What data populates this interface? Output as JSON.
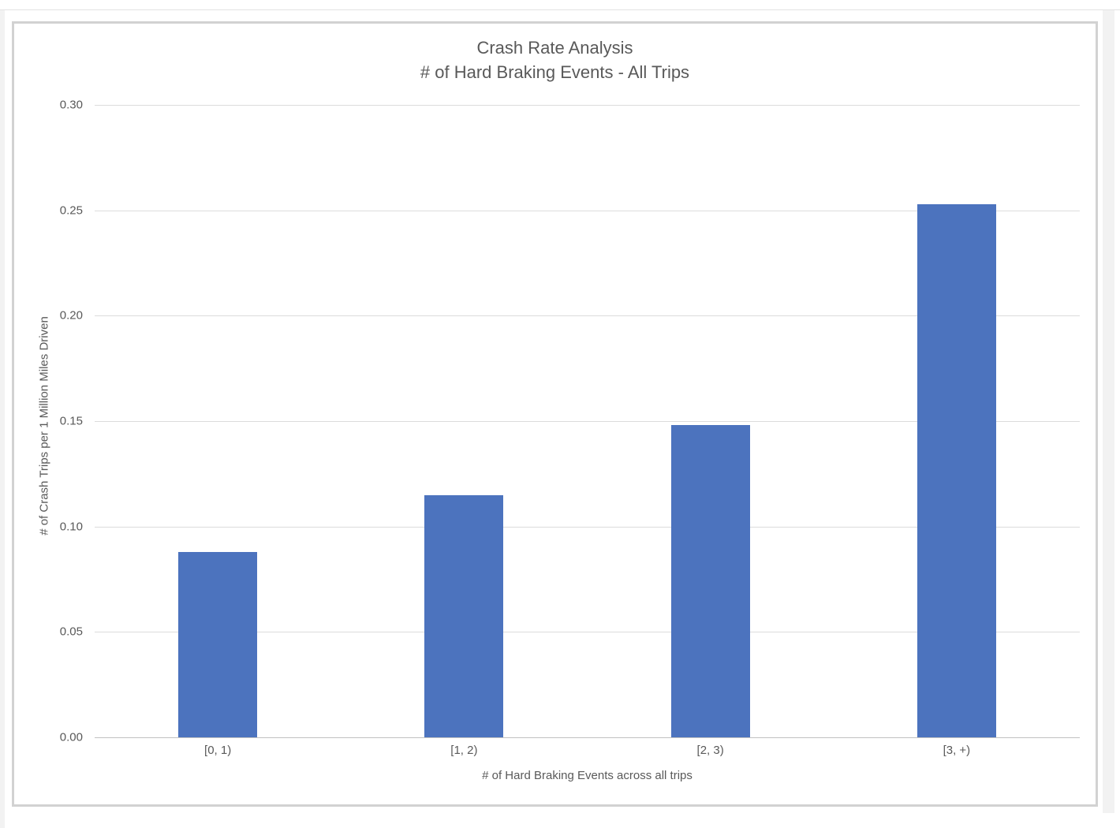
{
  "chart_data": {
    "type": "bar",
    "title": "Crash Rate Analysis",
    "subtitle": "# of Hard Braking Events - All Trips",
    "categories": [
      "[0, 1)",
      "[1, 2)",
      "[2, 3)",
      "[3, +)"
    ],
    "values": [
      0.088,
      0.115,
      0.148,
      0.253
    ],
    "xlabel": "# of Hard Braking Events across all trips",
    "ylabel": "# of Crash Trips per 1 Million Miles Driven",
    "ylim": [
      0,
      0.3
    ],
    "ytick_step": 0.05,
    "ytick_decimals": 2,
    "grid": "horizontal",
    "legend_position": "none",
    "colors": {
      "bar": "#4c73be",
      "gridline": "#dcdcdc",
      "axis_line": "#c2c2c2",
      "text": "#595959",
      "frame_border": "#d2d2d2"
    }
  }
}
